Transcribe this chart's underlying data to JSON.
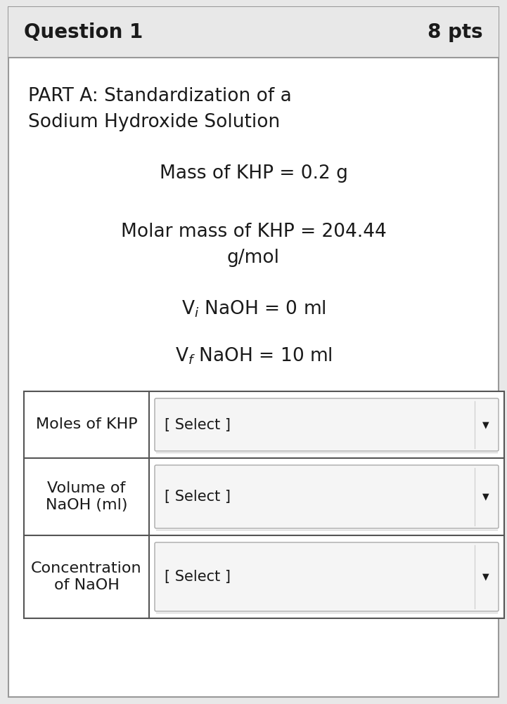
{
  "bg_color": "#e8e8e8",
  "content_bg": "#ffffff",
  "header_bg": "#e8e8e8",
  "border_color": "#999999",
  "text_color": "#1a1a1a",
  "question_label": "Question 1",
  "pts_label": "8 pts",
  "part_line1": "PART A: Standardization of a",
  "part_line2": "Sodium Hydroxide Solution",
  "mass_line": "Mass of KHP = 0.2 g",
  "molar_line1": "Molar mass of KHP = 204.44",
  "molar_line2": "g/mol",
  "vi_line": "V$_i$ NaOH = 0 ml",
  "vf_line": "V$_f$ NaOH = 10 ml",
  "table_rows": [
    {
      "label": "Moles of KHP"
    },
    {
      "label": "Volume of\nNaOH (ml)"
    },
    {
      "label": "Concentration\nof NaOH"
    }
  ],
  "select_text": "[ Select ]",
  "header_fontsize": 20,
  "pts_fontsize": 20,
  "body_fontsize": 19,
  "table_label_fontsize": 16,
  "table_select_fontsize": 15,
  "fig_w": 7.21,
  "fig_h": 10.02,
  "dpi": 100
}
